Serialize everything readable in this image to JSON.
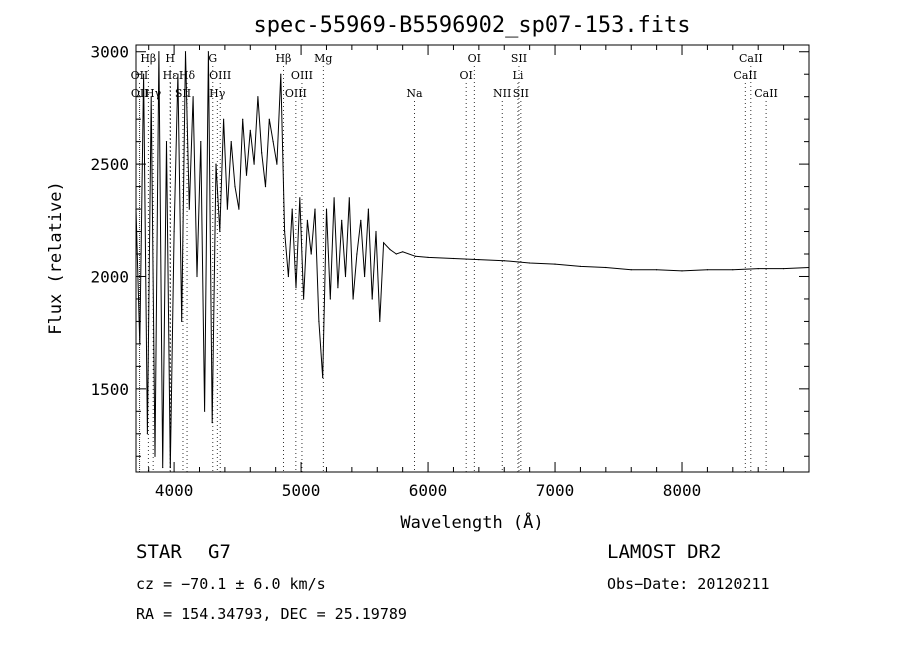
{
  "chart_data": {
    "type": "line",
    "title": "spec-55969-B5596902_sp07-153.fits",
    "xlabel": "Wavelength (Å)",
    "ylabel": "Flux (relative)",
    "xlim": [
      3700,
      9000
    ],
    "ylim": [
      1130,
      3030
    ],
    "x_ticks": [
      4000,
      5000,
      6000,
      7000,
      8000
    ],
    "y_ticks": [
      1500,
      2000,
      2500,
      3000
    ],
    "grid": false,
    "legend": "none",
    "series": [
      {
        "x": [
          3700,
          3730,
          3760,
          3790,
          3820,
          3850,
          3880,
          3910,
          3940,
          3970,
          4000,
          4030,
          4060,
          4090,
          4120,
          4150,
          4180,
          4210,
          4240,
          4270,
          4300,
          4330,
          4360,
          4390,
          4420,
          4450,
          4480,
          4510,
          4540,
          4570,
          4600,
          4630,
          4660,
          4690,
          4720,
          4750,
          4780,
          4810,
          4840,
          4870,
          4900,
          4930,
          4960,
          4990,
          5020,
          5050,
          5080,
          5110,
          5140,
          5170,
          5200,
          5230,
          5260,
          5290,
          5320,
          5350,
          5380,
          5410,
          5440,
          5470,
          5500,
          5530,
          5560,
          5590,
          5620,
          5650,
          5700,
          5750,
          5800,
          5900,
          6000,
          6200,
          6400,
          6600,
          6800,
          7000,
          7200,
          7400,
          7600,
          7800,
          8000,
          8200,
          8400,
          8600,
          8800,
          9000
        ],
        "y": [
          2300,
          1700,
          2900,
          1300,
          2800,
          1200,
          3000,
          1150,
          2600,
          1150,
          2200,
          2900,
          1800,
          3000,
          2300,
          2800,
          2000,
          2600,
          1400,
          3000,
          1350,
          2500,
          2200,
          2700,
          2300,
          2600,
          2400,
          2300,
          2700,
          2450,
          2650,
          2500,
          2800,
          2550,
          2400,
          2700,
          2600,
          2500,
          2900,
          2200,
          2000,
          2300,
          1950,
          2350,
          1900,
          2250,
          2100,
          2300,
          1800,
          1550,
          2300,
          1900,
          2350,
          1950,
          2250,
          2000,
          2350,
          1900,
          2100,
          2250,
          2000,
          2300,
          1900,
          2200,
          1800,
          2150,
          2120,
          2100,
          2110,
          2090,
          2085,
          2080,
          2075,
          2070,
          2060,
          2055,
          2045,
          2040,
          2030,
          2030,
          2025,
          2030,
          2030,
          2035,
          2035,
          2040
        ]
      }
    ],
    "line_markers": [
      {
        "label": "Hβ",
        "wave": 3797,
        "row": 0
      },
      {
        "label": "OII",
        "wave": 3727,
        "row": 1
      },
      {
        "label": "Hε",
        "wave": 3970,
        "row": 1
      },
      {
        "label": "OII",
        "wave": 3729,
        "row": 2
      },
      {
        "label": "Hγ",
        "wave": 3835,
        "row": 2
      },
      {
        "label": "H",
        "wave": 3969,
        "row": 0
      },
      {
        "label": "Hδ",
        "wave": 4102,
        "row": 1
      },
      {
        "label": "SII",
        "wave": 4070,
        "row": 2
      },
      {
        "label": "G",
        "wave": 4305,
        "row": 0
      },
      {
        "label": "OIII",
        "wave": 4363,
        "row": 1
      },
      {
        "label": "Hγ",
        "wave": 4340,
        "row": 2
      },
      {
        "label": "Hβ",
        "wave": 4861,
        "row": 0
      },
      {
        "label": "Mg",
        "wave": 5175,
        "row": 0
      },
      {
        "label": "OIII",
        "wave": 5007,
        "row": 1
      },
      {
        "label": "OIII",
        "wave": 4959,
        "row": 2
      },
      {
        "label": "Na",
        "wave": 5893,
        "row": 2
      },
      {
        "label": "OI",
        "wave": 6364,
        "row": 0
      },
      {
        "label": "OI",
        "wave": 6300,
        "row": 1
      },
      {
        "label": "SII",
        "wave": 6716,
        "row": 0
      },
      {
        "label": "Li",
        "wave": 6708,
        "row": 1
      },
      {
        "label": "NII",
        "wave": 6584,
        "row": 2
      },
      {
        "label": "SII",
        "wave": 6731,
        "row": 2
      },
      {
        "label": "CaII",
        "wave": 8542,
        "row": 0
      },
      {
        "label": "CaII",
        "wave": 8498,
        "row": 1
      },
      {
        "label": "CaII",
        "wave": 8662,
        "row": 2
      }
    ]
  },
  "info": {
    "object_class": "STAR",
    "subclass": "G7",
    "survey": "LAMOST DR2",
    "cz": "cz = −70.1 ± 6.0 km/s",
    "obs_date": "Obs−Date: 20120211",
    "coords": "RA = 154.34793, DEC =  25.19789"
  }
}
